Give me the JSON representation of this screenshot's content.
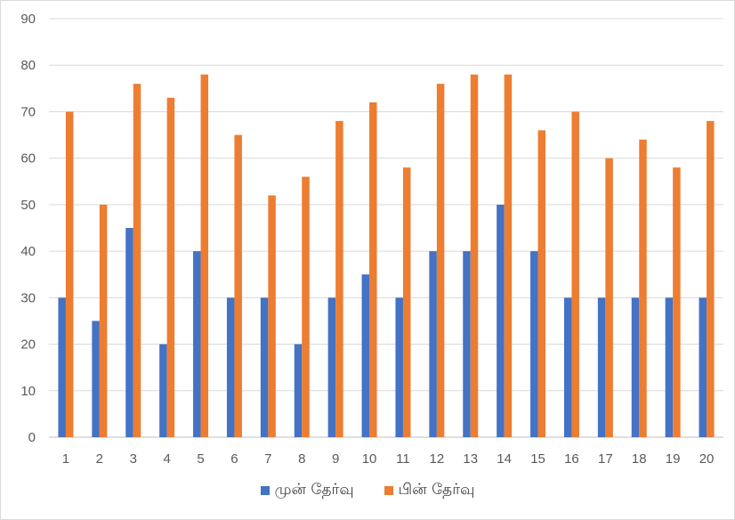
{
  "chart_data": {
    "type": "bar",
    "categories": [
      "1",
      "2",
      "3",
      "4",
      "5",
      "6",
      "7",
      "8",
      "9",
      "10",
      "11",
      "12",
      "13",
      "14",
      "15",
      "16",
      "17",
      "18",
      "19",
      "20"
    ],
    "series": [
      {
        "name": "முன் தேர்வு",
        "color": "#4472c4",
        "values": [
          30,
          25,
          45,
          20,
          40,
          30,
          30,
          20,
          30,
          35,
          30,
          40,
          40,
          50,
          40,
          30,
          30,
          30,
          30,
          30
        ]
      },
      {
        "name": "பின் தேர்வு",
        "color": "#ed7d31",
        "values": [
          70,
          50,
          76,
          73,
          78,
          65,
          52,
          56,
          68,
          72,
          58,
          76,
          78,
          78,
          66,
          70,
          60,
          64,
          58,
          68
        ]
      }
    ],
    "yticks": [
      "0",
      "10",
      "20",
      "30",
      "40",
      "50",
      "60",
      "70",
      "80",
      "90"
    ],
    "ylim": [
      0,
      90
    ],
    "grid": true,
    "legend_position": "bottom"
  }
}
